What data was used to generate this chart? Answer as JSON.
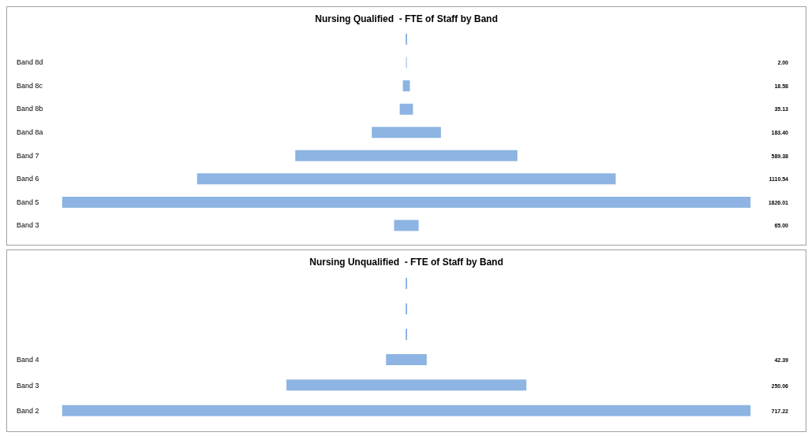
{
  "chart_data": [
    {
      "type": "other",
      "title": "Nursing Qualified  - FTE of Staff by Band",
      "color": "#8db4e2",
      "categories": [
        null,
        "Band 8d",
        "Band 8c",
        "Band 8b",
        "Band 8a",
        "Band 7",
        "Band 6",
        "Band 5",
        "Band 3"
      ],
      "values": [
        null,
        2.0,
        18.58,
        35.13,
        183.4,
        589.38,
        1110.54,
        1826.01,
        65.0
      ],
      "value_labels": [
        null,
        "2.00",
        "18.58",
        "35.13",
        "183.40",
        "589.38",
        "1110.54",
        "1826.01",
        "65.00"
      ]
    },
    {
      "type": "other",
      "title": "Nursing Unqualified  - FTE of Staff by Band",
      "color": "#8db4e2",
      "categories": [
        null,
        null,
        null,
        "Band 4",
        "Band 3",
        "Band 2"
      ],
      "values": [
        null,
        null,
        null,
        42.39,
        250.06,
        717.22
      ],
      "value_labels": [
        null,
        null,
        null,
        "42.39",
        "250.06",
        "717.22"
      ]
    }
  ]
}
